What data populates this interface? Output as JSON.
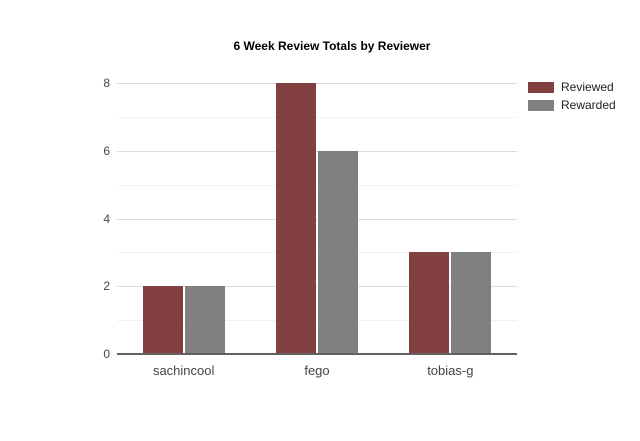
{
  "chart_data": {
    "type": "bar",
    "title": "6 Week Review Totals by Reviewer",
    "categories": [
      "sachincool",
      "fego",
      "tobias-g"
    ],
    "series": [
      {
        "name": "Reviewed",
        "color": "#824040",
        "values": [
          2,
          8,
          3
        ]
      },
      {
        "name": "Rewarded",
        "color": "#808080",
        "values": [
          2,
          6,
          3
        ]
      }
    ],
    "xlabel": "",
    "ylabel": "",
    "ylim": [
      0,
      8
    ],
    "yticks": [
      0,
      2,
      4,
      6,
      8
    ],
    "y_minor_ticks": [
      1,
      3,
      5,
      7
    ],
    "grid": "horizontal-on",
    "legend_position": "right",
    "background_color": "#ffffff",
    "axis_line_color": "#616161",
    "tick_label_color": "#444444"
  }
}
